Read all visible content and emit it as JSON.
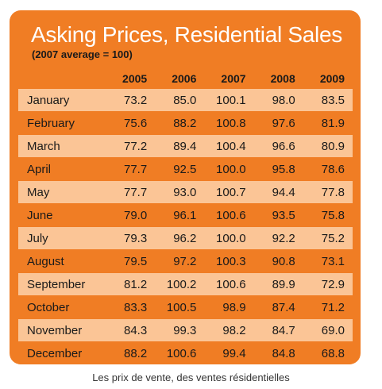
{
  "chart_data": {
    "type": "table",
    "title": "Asking Prices, Residential Sales",
    "subtitle": "(2007 average = 100)",
    "columns": [
      "2005",
      "2006",
      "2007",
      "2008",
      "2009"
    ],
    "rows": [
      {
        "month": "January",
        "values": [
          "73.2",
          "85.0",
          "100.1",
          "98.0",
          "83.5"
        ]
      },
      {
        "month": "February",
        "values": [
          "75.6",
          "88.2",
          "100.8",
          "97.6",
          "81.9"
        ]
      },
      {
        "month": "March",
        "values": [
          "77.2",
          "89.4",
          "100.4",
          "96.6",
          "80.9"
        ]
      },
      {
        "month": "April",
        "values": [
          "77.7",
          "92.5",
          "100.0",
          "95.8",
          "78.6"
        ]
      },
      {
        "month": "May",
        "values": [
          "77.7",
          "93.0",
          "100.7",
          "94.4",
          "77.8"
        ]
      },
      {
        "month": "June",
        "values": [
          "79.0",
          "96.1",
          "100.6",
          "93.5",
          "75.8"
        ]
      },
      {
        "month": "July",
        "values": [
          "79.3",
          "96.2",
          "100.0",
          "92.2",
          "75.2"
        ]
      },
      {
        "month": "August",
        "values": [
          "79.5",
          "97.2",
          "100.3",
          "90.8",
          "73.1"
        ]
      },
      {
        "month": "September",
        "values": [
          "81.2",
          "100.2",
          "100.6",
          "89.9",
          "72.9"
        ]
      },
      {
        "month": "October",
        "values": [
          "83.3",
          "100.5",
          "98.9",
          "87.4",
          "71.2"
        ]
      },
      {
        "month": "November",
        "values": [
          "84.3",
          "99.3",
          "98.2",
          "84.7",
          "69.0"
        ]
      },
      {
        "month": "December",
        "values": [
          "88.2",
          "100.6",
          "99.4",
          "84.8",
          "68.8"
        ]
      }
    ]
  },
  "caption": "Les prix de vente, des ventes résidentielles",
  "colors": {
    "panel": "#f07d24",
    "row_light": "#fbc596",
    "row_dark": "#f07d24",
    "title": "#ffffff",
    "text": "#1a1a1a"
  }
}
